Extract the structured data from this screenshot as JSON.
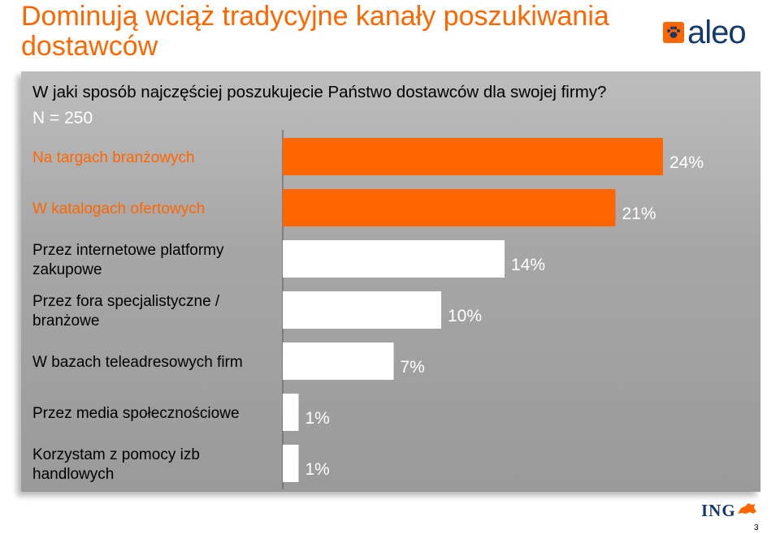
{
  "header": {
    "title": "Dominują wciąż tradycyjne kanały poszukiwania dostawców",
    "brand_logo": "aleo",
    "brand_icon": "paw-icon"
  },
  "colors": {
    "title": "#ff6600",
    "highlight_bar": "#ff6600",
    "normal_bar": "#ffffff",
    "panel_background": "#a8a8a8",
    "brand_text": "#143a6b"
  },
  "question": {
    "text": "W jaki sposób najczęściej poszukujecie Państwo dostawców dla swojej firmy?",
    "sample": "N = 250"
  },
  "chart_data": {
    "type": "bar",
    "orientation": "horizontal",
    "categories": [
      "Na targach branżowych",
      "W katalogach ofertowych",
      "Przez internetowe platformy zakupowe",
      "Przez fora specjalistyczne / branżowe",
      "W bazach teleadresowych firm",
      "Przez media społecznościowe",
      "Korzystam z pomocy izb handlowych"
    ],
    "values": [
      24,
      21,
      14,
      10,
      7,
      1,
      1
    ],
    "value_labels": [
      "24%",
      "21%",
      "14%",
      "10%",
      "7%",
      "1%",
      "1%"
    ],
    "highlighted": [
      true,
      true,
      false,
      false,
      false,
      false,
      false
    ],
    "unit": "%",
    "xlim": [
      0,
      24
    ],
    "grid": false
  },
  "footer": {
    "brand_logo": "ING",
    "brand_icon": "lion-icon",
    "page_number": "3"
  }
}
